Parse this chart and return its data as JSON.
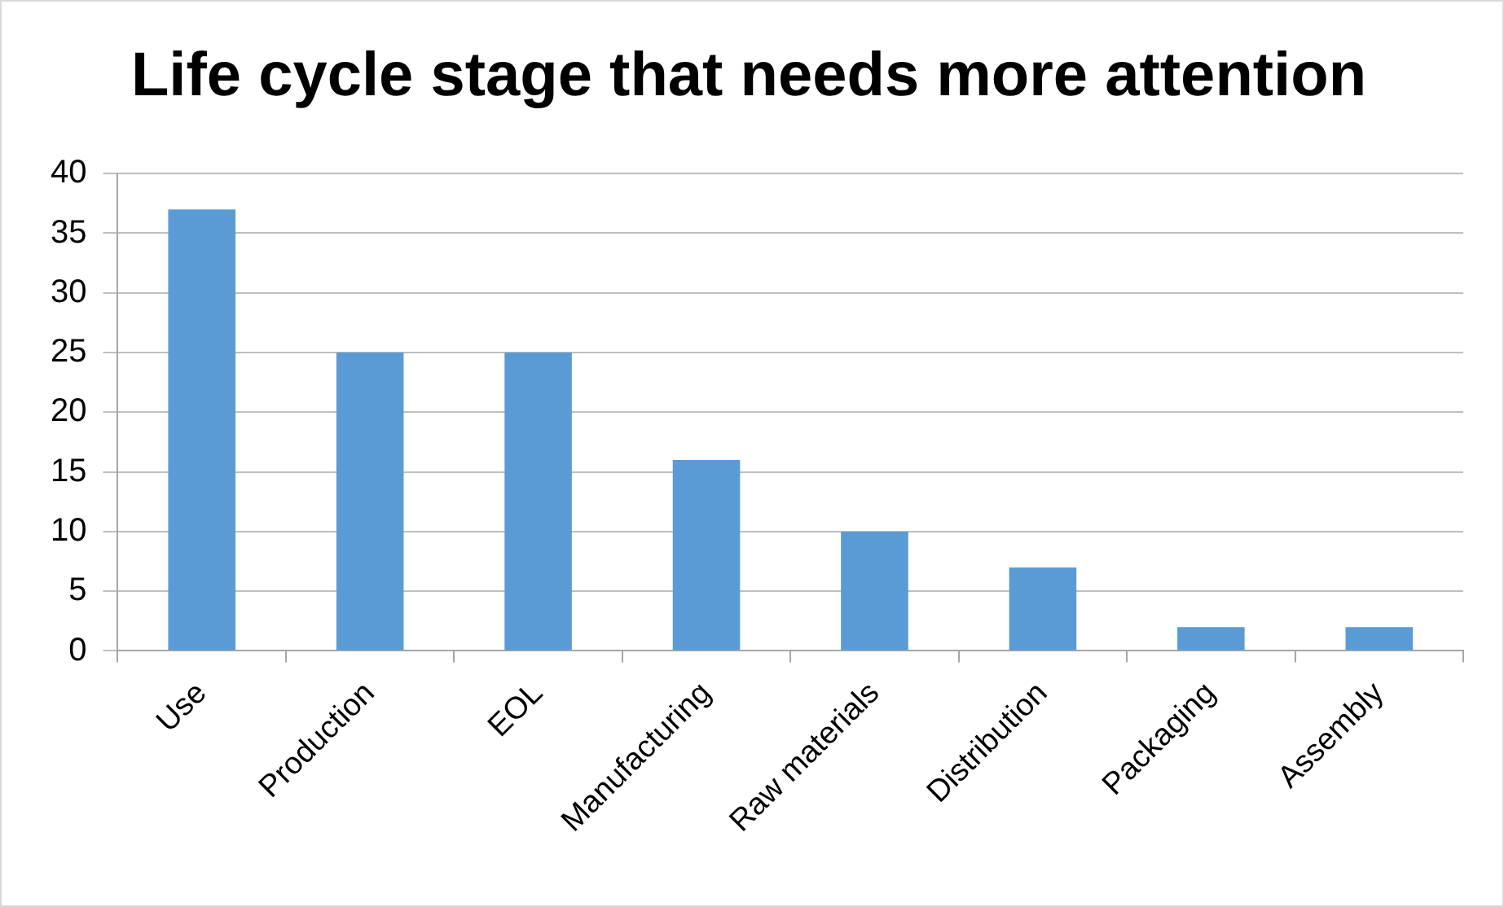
{
  "chart_data": {
    "type": "bar",
    "title": "Life cycle stage that needs more attention",
    "categories": [
      "Use",
      "Production",
      "EOL",
      "Manufacturing",
      "Raw materials",
      "Distribution",
      "Packaging",
      "Assembly"
    ],
    "values": [
      37,
      25,
      25,
      16,
      10,
      7,
      2,
      2
    ],
    "color": "#5b9bd5",
    "ylim": [
      0,
      40
    ],
    "yticks": [
      0,
      5,
      10,
      15,
      20,
      25,
      30,
      35,
      40
    ],
    "grid": "y",
    "legend": false
  }
}
